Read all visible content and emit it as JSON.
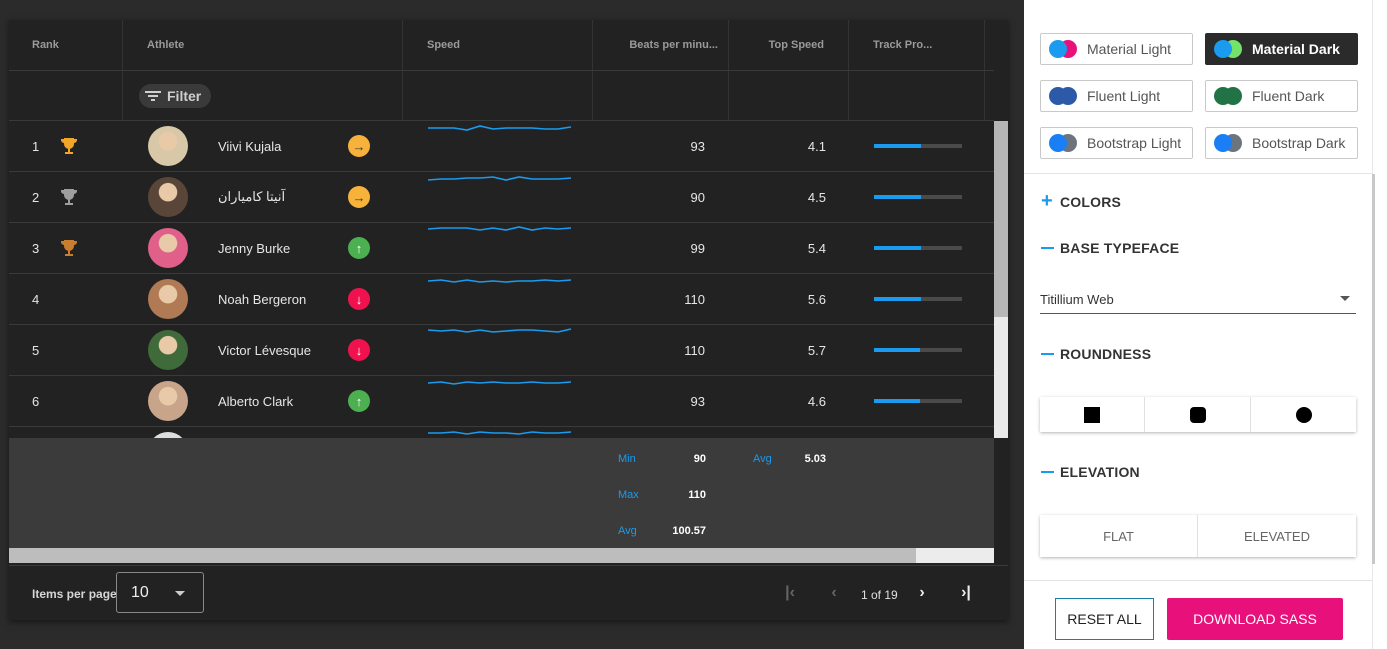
{
  "grid": {
    "columns": [
      "Rank",
      "Athlete",
      "Speed",
      "Beats per minu...",
      "Top Speed",
      "Track Pro..."
    ],
    "filter_label": "Filter",
    "rows": [
      {
        "rank": "1",
        "trophy": "gold",
        "name": "Viivi Kujala",
        "trend": "right",
        "trend_color": "#f7b23b",
        "bpm": "93",
        "top_speed": "4.1",
        "progress": 0.53,
        "spark": [
          9,
          9,
          9,
          11,
          7,
          10,
          9,
          9,
          9,
          10,
          10,
          8
        ]
      },
      {
        "rank": "2",
        "trophy": "silver",
        "name": "آنیتا کامیاران",
        "trend": "right",
        "trend_color": "#f7b23b",
        "bpm": "90",
        "top_speed": "4.5",
        "progress": 0.53,
        "spark": [
          10,
          9,
          9,
          8,
          8,
          7,
          10,
          7,
          9,
          9,
          9,
          8
        ]
      },
      {
        "rank": "3",
        "trophy": "bronze",
        "name": "Jenny Burke",
        "trend": "up",
        "trend_color": "#4caf50",
        "bpm": "99",
        "top_speed": "5.4",
        "progress": 0.53,
        "spark": [
          8,
          7,
          7,
          7,
          9,
          7,
          9,
          6,
          9,
          7,
          8,
          7
        ]
      },
      {
        "rank": "4",
        "trophy": "",
        "name": "Noah Bergeron",
        "trend": "down",
        "trend_color": "#f0124f",
        "bpm": "110",
        "top_speed": "5.6",
        "progress": 0.53,
        "spark": [
          9,
          8,
          10,
          8,
          10,
          9,
          10,
          9,
          9,
          8,
          9,
          8
        ]
      },
      {
        "rank": "5",
        "trophy": "",
        "name": "Victor Lévesque",
        "trend": "down",
        "trend_color": "#f0124f",
        "bpm": "110",
        "top_speed": "5.7",
        "progress": 0.52,
        "spark": [
          7,
          8,
          7,
          9,
          7,
          9,
          8,
          7,
          7,
          8,
          9,
          6
        ]
      },
      {
        "rank": "6",
        "trophy": "",
        "name": "Alberto Clark",
        "trend": "up",
        "trend_color": "#4caf50",
        "bpm": "93",
        "top_speed": "4.6",
        "progress": 0.52,
        "spark": [
          9,
          8,
          10,
          8,
          9,
          8,
          9,
          9,
          8,
          9,
          9,
          8
        ]
      },
      {
        "rank": "",
        "trophy": "",
        "name": "",
        "trend": "",
        "trend_color": "",
        "bpm": "",
        "top_speed": "",
        "progress": 0,
        "spark": [
          8,
          8,
          7,
          9,
          7,
          8,
          8,
          9,
          7,
          8,
          8,
          7
        ]
      }
    ],
    "summary": {
      "bpm_min_label": "Min",
      "bpm_min": "90",
      "bpm_max_label": "Max",
      "bpm_max": "110",
      "bpm_avg_label": "Avg",
      "bpm_avg": "100.57",
      "speed_avg_label": "Avg",
      "speed_avg": "5.03"
    },
    "pager": {
      "items_per_page_label": "Items per page",
      "items_per_page": "10",
      "page_text": "1 of 19"
    }
  },
  "panel": {
    "themes": [
      {
        "label": "Material Light",
        "c1": "#1a9bf0",
        "c2": "#e8107a",
        "active": false
      },
      {
        "label": "Material Dark",
        "c1": "#1a9bf0",
        "c2": "#73e36b",
        "active": true
      },
      {
        "label": "Fluent Light",
        "c1": "#2d5aa8",
        "c2": "#2d5aa8",
        "active": false
      },
      {
        "label": "Fluent Dark",
        "c1": "#217346",
        "c2": "#217346",
        "active": false
      },
      {
        "label": "Bootstrap Light",
        "c1": "#1a7ef5",
        "c2": "#6c757d",
        "active": false
      },
      {
        "label": "Bootstrap Dark",
        "c1": "#1a7ef5",
        "c2": "#6c757d",
        "active": false
      }
    ],
    "sections": {
      "colors": "COLORS",
      "base_typeface": "BASE TYPEFACE",
      "roundness": "ROUNDNESS",
      "elevation": "ELEVATION"
    },
    "typeface_value": "Titillium Web",
    "elevation_options": [
      "FLAT",
      "ELEVATED"
    ],
    "reset_label": "RESET ALL",
    "download_label": "DOWNLOAD SASS"
  }
}
